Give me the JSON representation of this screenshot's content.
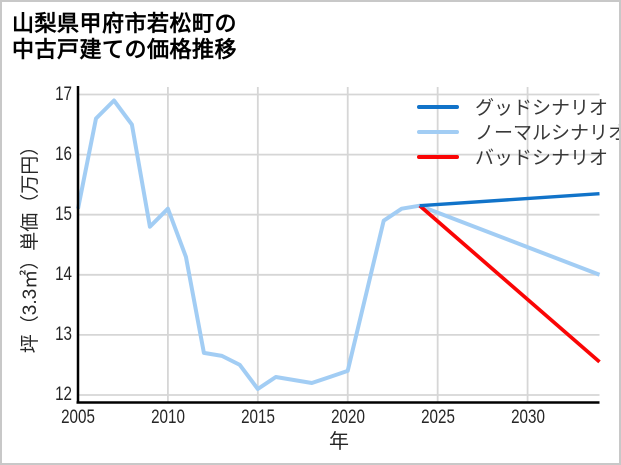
{
  "figure": {
    "title_line1": "山梨県甲府市若松町の",
    "title_line2": "中古戸建ての価格推移"
  },
  "axes": {
    "x_label": "年",
    "y_label": "坪（3.3㎡）単価（万円）"
  },
  "legend": {
    "items": [
      {
        "id": "good-scenario",
        "label": "グッドシナリオ",
        "color": "#1173c9"
      },
      {
        "id": "normal-scenario",
        "label": "ノーマルシナリオ",
        "color": "#a2cdf4"
      },
      {
        "id": "bad-scenario",
        "label": "バッドシナリオ",
        "color": "#fa0505"
      }
    ]
  },
  "colors": {
    "grid": "#d6d6d6",
    "spine": "#000000",
    "tick_text": "#262626",
    "frame_border": "#c8c8c8",
    "background": "#ffffff"
  },
  "chart_data": {
    "type": "line",
    "title": "山梨県甲府市若松町の中古戸建ての価格推移",
    "xlabel": "年",
    "ylabel": "坪（3.3㎡）単価（万円）",
    "xlim": [
      2005,
      2034
    ],
    "ylim": [
      11.875,
      17.125
    ],
    "x_ticks": [
      2005,
      2010,
      2015,
      2020,
      2025,
      2030
    ],
    "y_ticks": [
      17,
      16,
      15,
      14,
      13,
      12
    ],
    "grid": true,
    "legend_position": "upper right",
    "series": [
      {
        "id": "normal-scenario",
        "name": "ノーマルシナリオ",
        "color": "#a2cdf4",
        "width": 4,
        "x": [
          2005,
          2006,
          2007,
          2008,
          2009,
          2010,
          2011,
          2012,
          2013,
          2014,
          2015,
          2016,
          2017,
          2018,
          2019,
          2020,
          2021,
          2022,
          2023,
          2024,
          2034
        ],
        "y": [
          15.1,
          16.6,
          16.9,
          16.5,
          14.8,
          15.1,
          14.3,
          12.7,
          12.65,
          12.5,
          12.1,
          12.3,
          12.25,
          12.2,
          12.3,
          12.4,
          13.65,
          14.9,
          15.1,
          15.15,
          14.0
        ]
      },
      {
        "id": "bad-scenario",
        "name": "バッドシナリオ",
        "color": "#fa0505",
        "width": 3.7,
        "x": [
          2024,
          2034
        ],
        "y": [
          15.15,
          12.55
        ]
      },
      {
        "id": "good-scenario",
        "name": "グッドシナリオ",
        "color": "#1173c9",
        "width": 3.4,
        "x": [
          2024,
          2034
        ],
        "y": [
          15.15,
          15.35
        ]
      }
    ]
  }
}
